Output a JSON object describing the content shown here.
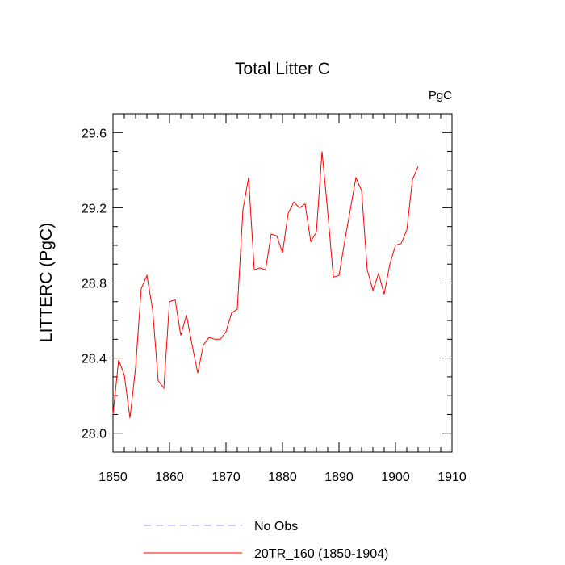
{
  "chart_data": {
    "type": "line",
    "title": "Total Litter C",
    "units_label": "PgC",
    "ylabel": "LITTERC  (PgC)",
    "xlabel": "",
    "xlim": [
      1850,
      1910
    ],
    "ylim": [
      27.9,
      29.7
    ],
    "x_ticks": [
      1850,
      1860,
      1870,
      1880,
      1890,
      1900,
      1910
    ],
    "y_ticks": [
      28.0,
      28.4,
      28.8,
      29.2,
      29.6
    ],
    "y_tick_labels": [
      "28.0",
      "28.4",
      "28.8",
      "29.2",
      "29.6"
    ],
    "grid": false,
    "legend_position": "bottom",
    "series": [
      {
        "name": "No Obs",
        "color": "#9999ff",
        "style": "dashed",
        "x": [],
        "values": []
      },
      {
        "name": "20TR_160 (1850-1904)",
        "color": "#ff0000",
        "style": "solid",
        "x": [
          1850,
          1851,
          1852,
          1853,
          1854,
          1855,
          1856,
          1857,
          1858,
          1859,
          1860,
          1861,
          1862,
          1863,
          1864,
          1865,
          1866,
          1867,
          1868,
          1869,
          1870,
          1871,
          1872,
          1873,
          1874,
          1875,
          1876,
          1877,
          1878,
          1879,
          1880,
          1881,
          1882,
          1883,
          1884,
          1885,
          1886,
          1887,
          1888,
          1889,
          1890,
          1891,
          1892,
          1893,
          1894,
          1895,
          1896,
          1897,
          1898,
          1899,
          1900,
          1901,
          1902,
          1903,
          1904
        ],
        "values": [
          28.1,
          28.39,
          28.31,
          28.08,
          28.35,
          28.77,
          28.84,
          28.66,
          28.28,
          28.24,
          28.7,
          28.71,
          28.52,
          28.63,
          28.47,
          28.32,
          28.47,
          28.51,
          28.5,
          28.5,
          28.54,
          28.64,
          28.66,
          29.19,
          29.36,
          28.87,
          28.88,
          28.87,
          29.06,
          29.05,
          28.96,
          29.17,
          29.23,
          29.2,
          29.22,
          29.02,
          29.07,
          29.5,
          29.18,
          28.83,
          28.84,
          29.02,
          29.19,
          29.36,
          29.29,
          28.87,
          28.76,
          28.85,
          28.74,
          28.9,
          29.0,
          29.01,
          29.08,
          29.35,
          29.42
        ]
      }
    ]
  }
}
